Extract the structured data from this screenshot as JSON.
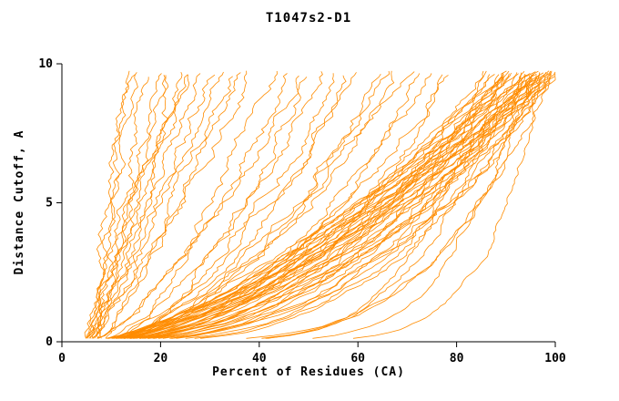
{
  "chart_data": {
    "type": "line",
    "title": "T1047s2-D1",
    "xlabel": "Percent of Residues (CA)",
    "ylabel": "Distance Cutoff, A",
    "xlim": [
      0,
      100
    ],
    "ylim": [
      0,
      10
    ],
    "xticks": [
      0,
      20,
      40,
      60,
      80,
      100
    ],
    "yticks": [
      0,
      5,
      10
    ],
    "grid": false,
    "legend": "none",
    "color": "#ff8c00",
    "curve_param_format": "[x_start_pct, x_end_pct_at_top_cutoff, shape_exponent, jitter_amp] - each entry is one model GDT curve, x(y)=x0+(xend-x0)*(y/ytop)^shape, estimated from plot",
    "curves": [
      [
        5,
        13,
        0.95,
        1.2
      ],
      [
        5,
        15,
        0.9,
        1.4
      ],
      [
        6,
        16,
        1.0,
        1.2
      ],
      [
        5,
        18,
        0.85,
        1.5
      ],
      [
        6,
        20,
        0.9,
        1.3
      ],
      [
        5,
        22,
        0.8,
        1.6
      ],
      [
        7,
        24,
        0.95,
        1.2
      ],
      [
        6,
        26,
        0.85,
        1.5
      ],
      [
        5,
        28,
        0.9,
        1.4
      ],
      [
        7,
        30,
        0.8,
        1.6
      ],
      [
        6,
        32,
        0.95,
        1.3
      ],
      [
        5,
        34,
        0.85,
        1.5
      ],
      [
        8,
        36,
        0.9,
        1.2
      ],
      [
        6,
        38,
        0.8,
        1.4
      ],
      [
        5,
        25,
        1.1,
        1.3
      ],
      [
        7,
        21,
        1.05,
        1.2
      ],
      [
        5,
        42,
        0.6,
        1.5
      ],
      [
        6,
        45,
        0.55,
        1.6
      ],
      [
        5,
        48,
        0.65,
        1.4
      ],
      [
        7,
        50,
        0.5,
        1.7
      ],
      [
        6,
        53,
        0.6,
        1.5
      ],
      [
        5,
        56,
        0.55,
        1.6
      ],
      [
        6,
        58,
        0.5,
        1.5
      ],
      [
        7,
        60,
        0.6,
        1.4
      ],
      [
        5,
        63,
        0.45,
        1.7
      ],
      [
        6,
        66,
        0.55,
        1.5
      ],
      [
        5,
        68,
        0.5,
        1.6
      ],
      [
        7,
        70,
        0.6,
        1.4
      ],
      [
        6,
        73,
        0.45,
        1.6
      ],
      [
        5,
        76,
        0.55,
        1.5
      ],
      [
        6,
        78,
        0.5,
        1.5
      ],
      [
        7,
        80,
        0.45,
        1.6
      ],
      [
        5,
        85,
        0.55,
        1.4
      ],
      [
        6,
        86,
        0.5,
        1.5
      ],
      [
        5,
        87,
        0.6,
        1.3
      ],
      [
        7,
        88,
        0.45,
        1.6
      ],
      [
        6,
        88,
        0.65,
        1.4
      ],
      [
        5,
        89,
        0.5,
        1.5
      ],
      [
        6,
        89,
        0.7,
        1.3
      ],
      [
        7,
        90,
        0.55,
        1.5
      ],
      [
        5,
        90,
        0.4,
        1.6
      ],
      [
        6,
        91,
        0.6,
        1.4
      ],
      [
        5,
        91,
        0.5,
        1.5
      ],
      [
        7,
        92,
        0.65,
        1.3
      ],
      [
        6,
        92,
        0.45,
        1.6
      ],
      [
        5,
        93,
        0.55,
        1.4
      ],
      [
        6,
        93,
        0.7,
        1.3
      ],
      [
        8,
        93,
        0.4,
        1.6
      ],
      [
        5,
        94,
        0.6,
        1.4
      ],
      [
        6,
        94,
        0.5,
        1.5
      ],
      [
        7,
        94,
        0.35,
        1.7
      ],
      [
        5,
        95,
        0.65,
        1.3
      ],
      [
        6,
        95,
        0.55,
        1.4
      ],
      [
        8,
        95,
        0.45,
        1.5
      ],
      [
        5,
        96,
        0.6,
        1.4
      ],
      [
        6,
        96,
        0.5,
        1.5
      ],
      [
        7,
        96,
        0.4,
        1.6
      ],
      [
        5,
        96,
        0.7,
        1.3
      ],
      [
        6,
        97,
        0.55,
        1.4
      ],
      [
        5,
        97,
        0.45,
        1.5
      ],
      [
        7,
        97,
        0.65,
        1.3
      ],
      [
        8,
        97,
        0.35,
        1.7
      ],
      [
        5,
        98,
        0.6,
        1.4
      ],
      [
        6,
        98,
        0.5,
        1.5
      ],
      [
        7,
        98,
        0.4,
        1.6
      ],
      [
        5,
        98,
        0.7,
        1.3
      ],
      [
        6,
        99,
        0.55,
        1.4
      ],
      [
        5,
        99,
        0.45,
        1.5
      ],
      [
        7,
        99,
        0.65,
        1.3
      ],
      [
        8,
        99,
        0.35,
        1.6
      ],
      [
        5,
        100,
        0.6,
        1.4
      ],
      [
        6,
        100,
        0.5,
        1.5
      ],
      [
        7,
        100,
        0.42,
        1.6
      ],
      [
        5,
        100,
        0.68,
        1.3
      ],
      [
        5,
        86,
        0.18,
        1.0
      ],
      [
        6,
        90,
        0.2,
        1.1
      ],
      [
        5,
        93,
        0.15,
        0.9
      ],
      [
        6,
        96,
        0.22,
        1.0
      ],
      [
        5,
        97,
        0.12,
        0.8
      ],
      [
        7,
        99,
        0.25,
        1.1
      ]
    ]
  }
}
